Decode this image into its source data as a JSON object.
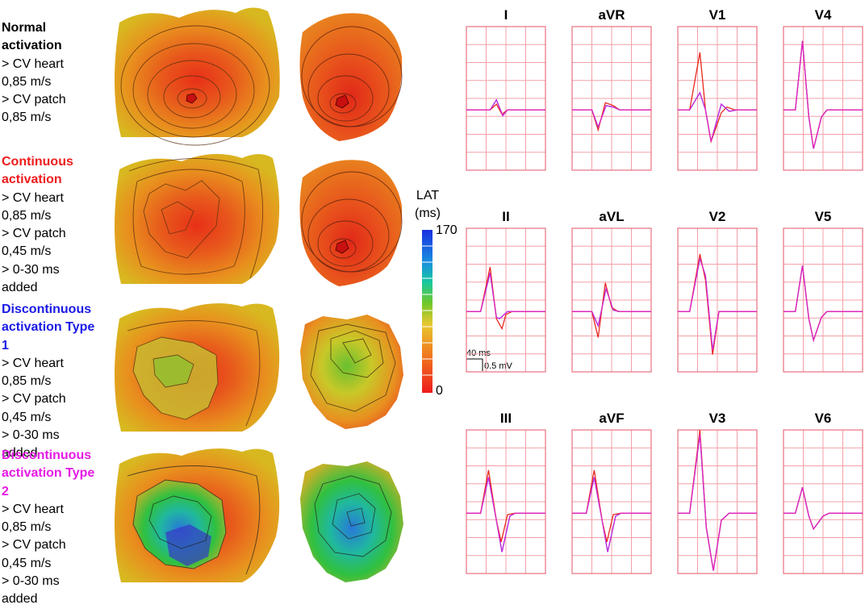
{
  "rows": [
    {
      "title": "Normal activation",
      "title_color": "#000000",
      "lines": [
        "> CV heart",
        "0,85 m/s",
        "> CV patch",
        "0,85 m/s"
      ]
    },
    {
      "title": "Continuous activation",
      "title_color": "#ee1c1c",
      "lines": [
        "> CV heart",
        "0,85 m/s",
        "> CV patch",
        "0,45 m/s",
        "> 0-30 ms",
        "added"
      ]
    },
    {
      "title": "Discontinuous activation Type 1",
      "title_color": "#1a1ae6",
      "lines": [
        "> CV heart",
        "0,85 m/s",
        "> CV patch",
        "0,45 m/s",
        "> 0-30 ms",
        "added"
      ]
    },
    {
      "title": "Discontinuous activation Type 2",
      "title_color": "#e61ae6",
      "lines": [
        "> CV heart",
        "0,85 m/s",
        "> CV patch",
        "0,45 m/s",
        "> 0-30 ms",
        "added"
      ]
    }
  ],
  "legend": {
    "title_line1": "LAT",
    "title_line2": "(ms)",
    "max_label": "170",
    "min_label": "0"
  },
  "scale": {
    "time": "40 ms",
    "voltage": "0.5 mV"
  },
  "leads": [
    "I",
    "aVR",
    "V1",
    "V4",
    "II",
    "aVL",
    "V2",
    "V5",
    "III",
    "aVF",
    "V3",
    "V6"
  ],
  "colors": {
    "grid": "#f4a0a8",
    "frame": "#e87080",
    "trace_red": "#e8281e",
    "trace_blue": "#3030d8",
    "trace_magenta": "#e028e0"
  }
}
